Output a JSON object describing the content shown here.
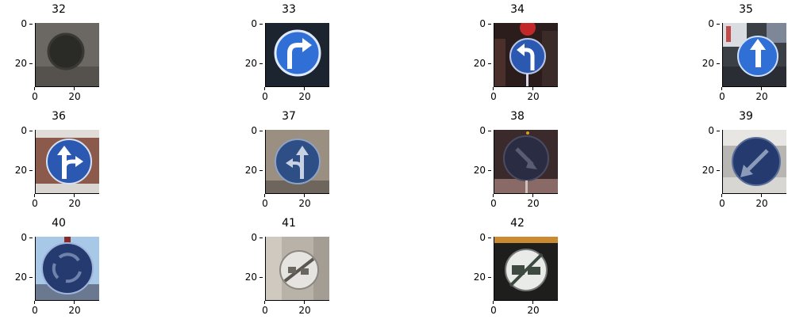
{
  "panels": [
    {
      "title": "32",
      "yticks": [
        "0",
        "20"
      ],
      "xticks": [
        "0",
        "20"
      ]
    },
    {
      "title": "33",
      "yticks": [
        "0",
        "20"
      ],
      "xticks": [
        "0",
        "20"
      ]
    },
    {
      "title": "34",
      "yticks": [
        "0",
        "20"
      ],
      "xticks": [
        "0",
        "20"
      ]
    },
    {
      "title": "35",
      "yticks": [
        "0",
        "20"
      ],
      "xticks": [
        "0",
        "20"
      ]
    },
    {
      "title": "36",
      "yticks": [
        "0",
        "20"
      ],
      "xticks": [
        "0",
        "20"
      ]
    },
    {
      "title": "37",
      "yticks": [
        "0",
        "20"
      ],
      "xticks": [
        "0",
        "20"
      ]
    },
    {
      "title": "38",
      "yticks": [
        "0",
        "20"
      ],
      "xticks": [
        "0",
        "20"
      ]
    },
    {
      "title": "39",
      "yticks": [
        "0",
        "20"
      ],
      "xticks": [
        "0",
        "20"
      ]
    },
    {
      "title": "40",
      "yticks": [
        "0",
        "20"
      ],
      "xticks": [
        "0",
        "20"
      ]
    },
    {
      "title": "41",
      "yticks": [
        "0",
        "20"
      ],
      "xticks": [
        "0",
        "20"
      ]
    },
    {
      "title": "42",
      "yticks": [
        "0",
        "20"
      ],
      "xticks": [
        "0",
        "20"
      ]
    }
  ]
}
